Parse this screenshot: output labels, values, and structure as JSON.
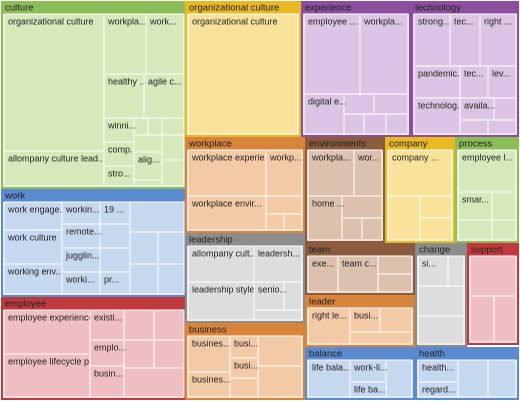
{
  "groups": [
    {
      "label": "culture",
      "items": [
        "organizational culture",
        "allompany culture lead...",
        "workpla...",
        "work...",
        "healthy ...",
        "agile c...",
        "winni...",
        "comp...",
        "stro...",
        "alig..."
      ]
    },
    {
      "label": "organizational culture",
      "items": [
        "organizational culture"
      ]
    },
    {
      "label": "experience",
      "items": [
        "employee ...",
        "workpla...",
        "digital e..."
      ]
    },
    {
      "label": "technology",
      "items": [
        "strong...",
        "tec...",
        "right ...",
        "pandemic...",
        "tec...",
        "lev...",
        "technolog...",
        "availa..."
      ]
    },
    {
      "label": "workplace",
      "items": [
        "workplace experie...",
        "workp...",
        "workplace envir..."
      ]
    },
    {
      "label": "environments",
      "items": [
        "workpla...",
        "wor...",
        "home ..."
      ]
    },
    {
      "label": "company",
      "items": [
        "company ..."
      ]
    },
    {
      "label": "process",
      "items": [
        "employee l...",
        "smar..."
      ]
    },
    {
      "label": "work",
      "items": [
        "work engage...",
        "work culture",
        "working env...",
        "workin...",
        "remote...",
        "jugglin...",
        "worki...",
        "19 ...",
        "pr..."
      ]
    },
    {
      "label": "leadership",
      "items": [
        "allompany cult...",
        "leadersh...",
        "leadership style",
        "senio..."
      ]
    },
    {
      "label": "team",
      "items": [
        "exe...",
        "team c..."
      ]
    },
    {
      "label": "change",
      "items": [
        "si..."
      ]
    },
    {
      "label": "support",
      "items": []
    },
    {
      "label": "employee",
      "items": [
        "employee experience",
        "employee lifecycle p...",
        "existi...",
        "emplo...",
        "busin..."
      ]
    },
    {
      "label": "leader",
      "items": [
        "right le...",
        "busi..."
      ]
    },
    {
      "label": "business",
      "items": [
        "busines...",
        "busi...",
        "busi...",
        "busines..."
      ]
    },
    {
      "label": "balance",
      "items": [
        "life bala...",
        "work-li...",
        "life ba..."
      ]
    },
    {
      "label": "health",
      "items": [
        "health...",
        "regard..."
      ]
    }
  ]
}
